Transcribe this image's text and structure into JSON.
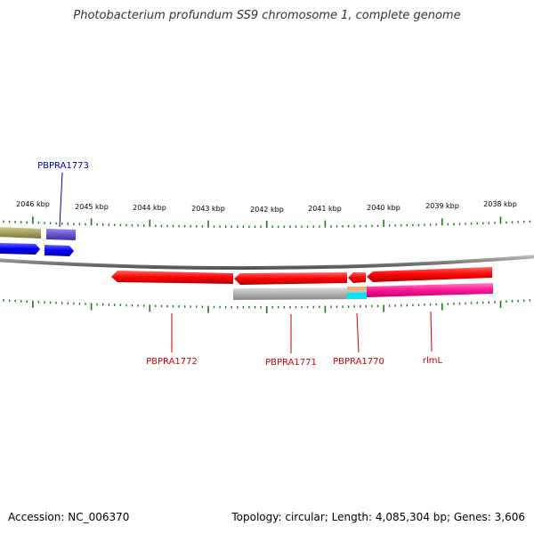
{
  "title": "Photobacterium profundum SS9 chromosome 1, complete genome",
  "footer": {
    "accession": "Accession: NC_006370",
    "summary": "Topology: circular; Length: 4,085,304 bp; Genes: 3,606"
  },
  "scale_labels": [
    "2046 kbp",
    "2045 kbp",
    "2044 kbp",
    "2043 kbp",
    "2042 kbp",
    "2041 kbp",
    "2040 kbp",
    "2039 kbp",
    "2038 kbp"
  ],
  "gene_labels": {
    "top": [
      "PBPRA1773"
    ],
    "bottom": [
      "PBPRA1772",
      "PBPRA1771",
      "PBPRA1770",
      "rlmL"
    ]
  },
  "colors": {
    "backbone": "#808080",
    "tick": "#1a7a1a",
    "gene_red": "#ff0000",
    "gene_blue": "#0000ff",
    "gene_olive": "#a8a060",
    "gene_purple": "#6655cc",
    "gene_gray": "#b0b0b0",
    "gene_magenta": "#ff1493",
    "gene_cyan": "#00e5ee",
    "label_blue": "#0000aa",
    "label_red": "#cc0000"
  }
}
